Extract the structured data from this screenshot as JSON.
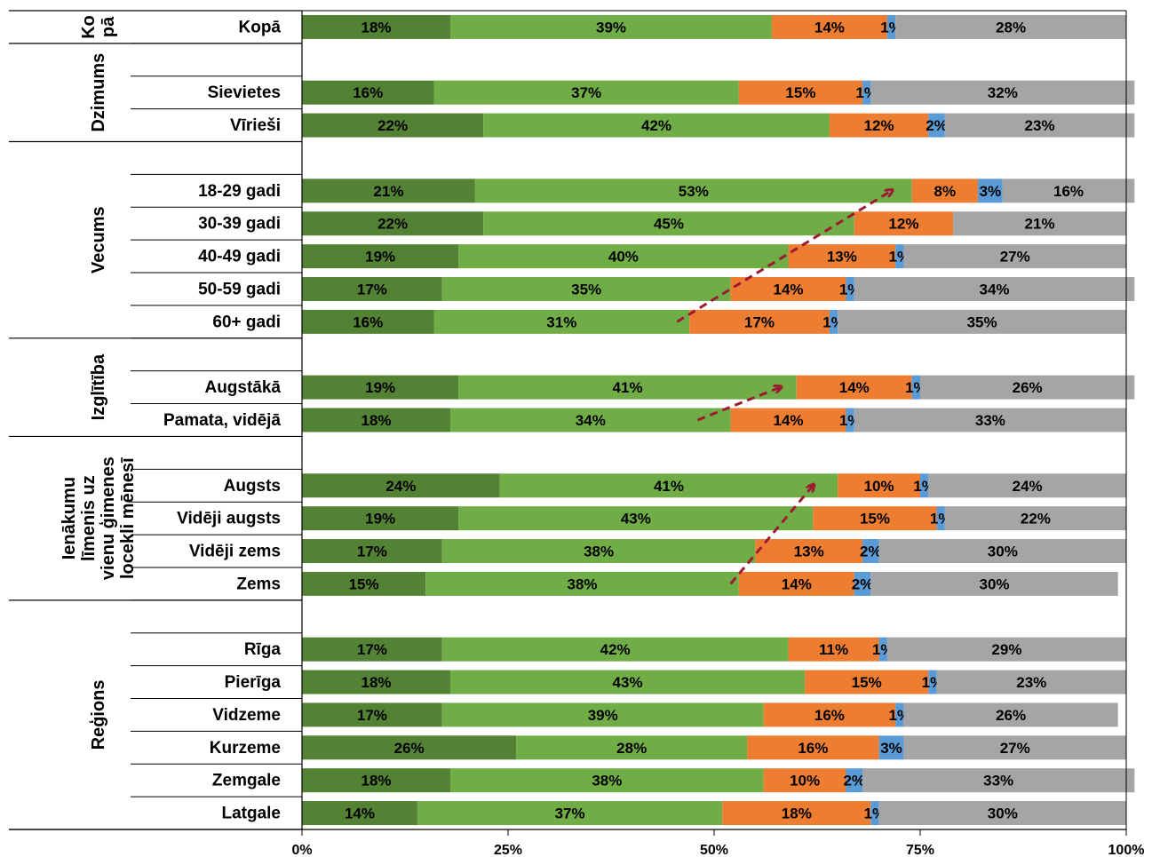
{
  "chart_data": {
    "type": "bar",
    "orientation": "horizontal",
    "stacked": true,
    "percent_stacked": true,
    "xlim": [
      0,
      100
    ],
    "x_ticks": [
      "0%",
      "25%",
      "50%",
      "75%",
      "100%"
    ],
    "grid": false,
    "legend": "none",
    "series_colors": [
      "#548235",
      "#70AD47",
      "#ED7D31",
      "#5B9BD5",
      "#A5A5A5"
    ],
    "groups": [
      {
        "label": "Kopā",
        "rows": [
          {
            "label": "Kopā",
            "values": [
              18,
              39,
              14,
              1,
              28
            ]
          }
        ]
      },
      {
        "label": "Dzimums",
        "rows": [
          {
            "label": "Sievietes",
            "values": [
              16,
              37,
              15,
              1,
              32
            ]
          },
          {
            "label": "Vīrieši",
            "values": [
              22,
              42,
              12,
              2,
              23
            ]
          }
        ]
      },
      {
        "label": "Vecums",
        "rows": [
          {
            "label": "18-29 gadi",
            "values": [
              21,
              53,
              8,
              3,
              16
            ]
          },
          {
            "label": "30-39 gadi",
            "values": [
              22,
              45,
              12,
              0,
              21
            ]
          },
          {
            "label": "40-49 gadi",
            "values": [
              19,
              40,
              13,
              1,
              27
            ]
          },
          {
            "label": "50-59 gadi",
            "values": [
              17,
              35,
              14,
              1,
              34
            ]
          },
          {
            "label": "60+ gadi",
            "values": [
              16,
              31,
              17,
              1,
              35
            ]
          }
        ]
      },
      {
        "label": "Izglītība",
        "rows": [
          {
            "label": "Augstākā",
            "values": [
              19,
              41,
              14,
              1,
              26
            ]
          },
          {
            "label": "Pamata, vidējā",
            "values": [
              18,
              34,
              14,
              1,
              33
            ]
          }
        ]
      },
      {
        "label": "Ienākumu līmenis uz vienu ģimenes locekli mēnesī",
        "rows": [
          {
            "label": "Augsts",
            "values": [
              24,
              41,
              10,
              1,
              24
            ]
          },
          {
            "label": "Vidēji augsts",
            "values": [
              19,
              43,
              15,
              1,
              22
            ]
          },
          {
            "label": "Vidēji zems",
            "values": [
              17,
              38,
              13,
              2,
              30
            ]
          },
          {
            "label": "Zems",
            "values": [
              15,
              38,
              14,
              2,
              30
            ]
          }
        ]
      },
      {
        "label": "Reģions",
        "rows": [
          {
            "label": "Rīga",
            "values": [
              17,
              42,
              11,
              1,
              29
            ]
          },
          {
            "label": "Pierīga",
            "values": [
              18,
              43,
              15,
              1,
              23
            ]
          },
          {
            "label": "Vidzeme",
            "values": [
              17,
              39,
              16,
              1,
              26
            ]
          },
          {
            "label": "Kurzeme",
            "values": [
              26,
              28,
              16,
              3,
              27
            ]
          },
          {
            "label": "Zemgale",
            "values": [
              18,
              38,
              10,
              2,
              33
            ]
          },
          {
            "label": "Latgale",
            "values": [
              14,
              37,
              18,
              1,
              30
            ]
          }
        ]
      }
    ],
    "group_label_lines": [
      [
        "Ko",
        "pā"
      ],
      [
        "Dzimums"
      ],
      [
        "Vecums"
      ],
      [
        "Izglītība"
      ],
      [
        "Ienākumu",
        "līmenis uz",
        "vienu ģimenes",
        "locekli mēnesī"
      ],
      [
        "Reģions"
      ]
    ],
    "annotations": [
      {
        "type": "dashed-arrow",
        "from": [
          "60+ gadi",
          45.5
        ],
        "to": [
          "18-29 gadi",
          71.5
        ],
        "color": "#9B1B30"
      },
      {
        "type": "dashed-arrow",
        "from": [
          "Pamata, vidējā",
          48
        ],
        "to": [
          "Augstākā",
          58
        ],
        "color": "#9B1B30"
      },
      {
        "type": "dashed-arrow",
        "from": [
          "Zems",
          52
        ],
        "to": [
          "Augsts",
          62
        ],
        "color": "#9B1B30"
      }
    ]
  }
}
